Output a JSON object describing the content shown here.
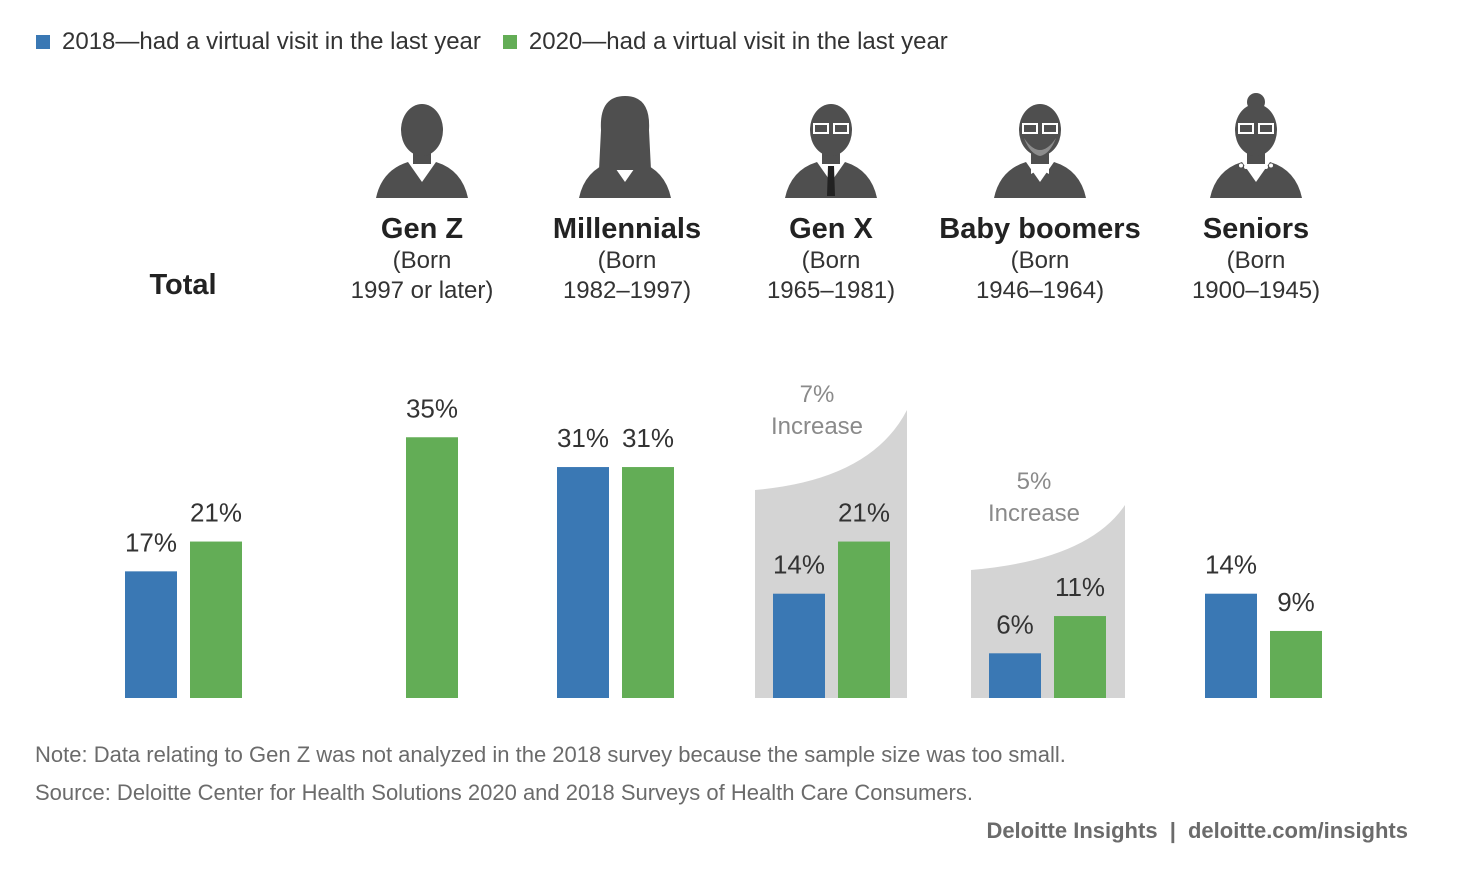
{
  "colors": {
    "y2018": "#3a78b4",
    "y2020": "#63ad56",
    "increase_bg": "#d4d4d4",
    "icon": "#4f4f4f",
    "text": "#333333",
    "muted": "#6b6b6b"
  },
  "legend": [
    {
      "label": "2018—had a virtual visit in the last year",
      "color": "#3a78b4"
    },
    {
      "label": "2020—had a virtual visit in the last year",
      "color": "#63ad56"
    }
  ],
  "chart_data": {
    "type": "bar",
    "unit": "%",
    "categories": [
      "Total",
      "Gen Z",
      "Millennials",
      "Gen X",
      "Baby boomers",
      "Seniors"
    ],
    "category_details": [
      {
        "name": "Total",
        "born_line1": "",
        "born_line2": ""
      },
      {
        "name": "Gen Z",
        "born_line1": "(Born",
        "born_line2": "1997 or later)"
      },
      {
        "name": "Millennials",
        "born_line1": "(Born",
        "born_line2": "1982–1997)"
      },
      {
        "name": "Gen X",
        "born_line1": "(Born",
        "born_line2": "1965–1981)"
      },
      {
        "name": "Baby boomers",
        "born_line1": "(Born",
        "born_line2": "1946–1964)"
      },
      {
        "name": "Seniors",
        "born_line1": "(Born",
        "born_line2": "1900–1945)"
      }
    ],
    "series": [
      {
        "name": "2018—had a virtual visit in the last year",
        "values": [
          17,
          null,
          31,
          14,
          6,
          14
        ],
        "labels": [
          "17%",
          "",
          "31%",
          "14%",
          "6%",
          "14%"
        ]
      },
      {
        "name": "2020—had a virtual visit in the last year",
        "values": [
          21,
          35,
          31,
          21,
          11,
          9
        ],
        "labels": [
          "21%",
          "35%",
          "31%",
          "21%",
          "11%",
          "9%"
        ]
      }
    ],
    "annotations": [
      {
        "category": "Gen X",
        "value_text": "7%",
        "label": "Increase"
      },
      {
        "category": "Baby boomers",
        "value_text": "5%",
        "label": "Increase"
      }
    ],
    "ylim": [
      0,
      35
    ]
  },
  "notes": {
    "note": "Note: Data relating to Gen Z was not analyzed in the 2018 survey because the sample size was too small.",
    "source": "Source: Deloitte Center for Health Solutions 2020 and 2018 Surveys of Health Care Consumers."
  },
  "brand": {
    "name": "Deloitte Insights",
    "separator": "|",
    "url": "deloitte.com/insights"
  }
}
